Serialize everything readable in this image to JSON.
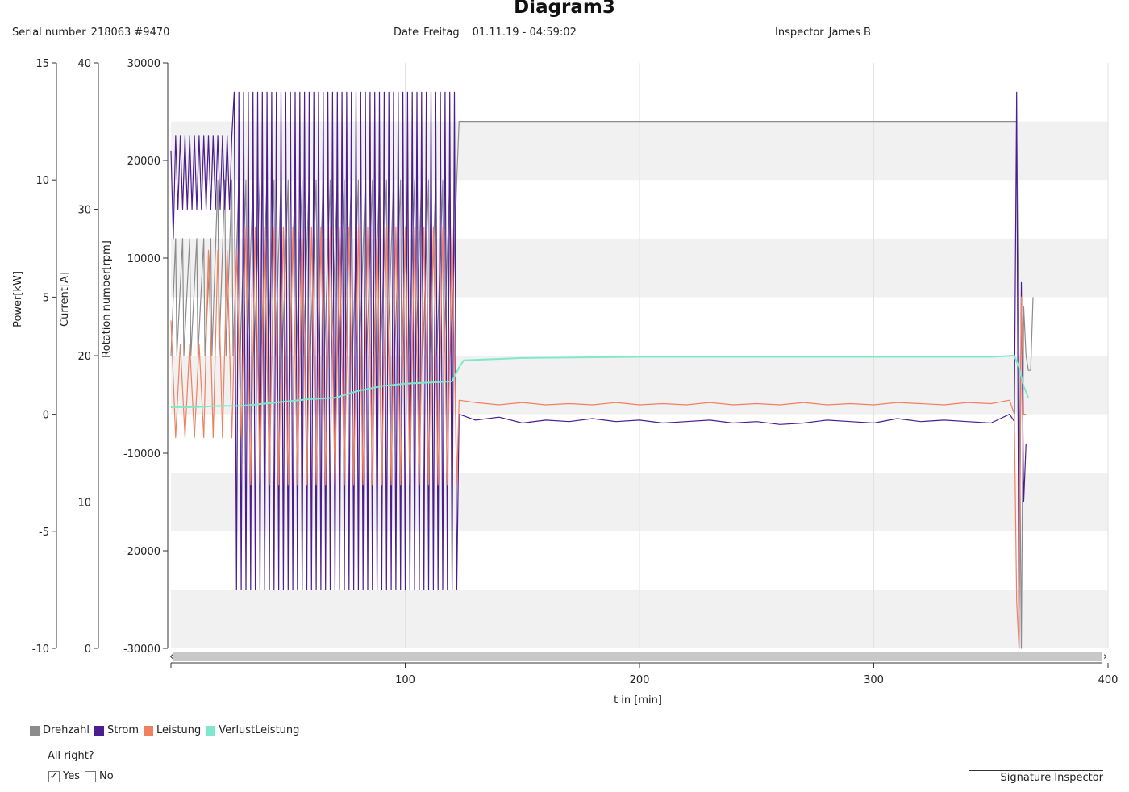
{
  "header": {
    "title": "Diagram3",
    "serial_label": "Serial number",
    "serial_value": "218063 #9470",
    "date_label": "Date",
    "date_day": "Freitag",
    "date_value": "01.11.19 - 04:59:02",
    "inspector_label": "Inspector",
    "inspector_value": "James B"
  },
  "chart_data": {
    "type": "line",
    "title": "Diagram3",
    "xlabel": "t in [min]",
    "xlim": [
      0,
      400
    ],
    "x_ticks": [
      "100",
      "200",
      "300",
      "400"
    ],
    "axes": [
      {
        "name": "power",
        "label": "Power[kW]",
        "range": [
          -10,
          15
        ],
        "ticks": [
          "15",
          "10",
          "5",
          "0",
          "-5",
          "-10"
        ]
      },
      {
        "name": "current",
        "label": "Current[A]",
        "range": [
          0,
          40
        ],
        "ticks": [
          "40",
          "30",
          "20",
          "10",
          "0"
        ]
      },
      {
        "name": "rotation",
        "label": "Rotation number[rpm]",
        "range": [
          -30000,
          30000
        ],
        "ticks": [
          "30000",
          "20000",
          "10000",
          "-10000",
          "-20000",
          "-30000"
        ]
      }
    ],
    "grid": "alternating horizontal bands, vertical gridlines at x ticks",
    "legend_position": "bottom-left",
    "series": [
      {
        "name": "Drehzahl",
        "color": "#8c8c8c",
        "axis": "rotation",
        "x": [
          0,
          2,
          2.5,
          5,
          5.5,
          8,
          8.5,
          11,
          11.5,
          14,
          14.5,
          17,
          17.5,
          20,
          20.5,
          23,
          23.5,
          26,
          26.5,
          29,
          29.5,
          32,
          32.5,
          35,
          35.5,
          38,
          38.5,
          41,
          41.5,
          44,
          44.5,
          47,
          47.5,
          50,
          50.5,
          53,
          53.5,
          56,
          56.5,
          59,
          59.5,
          62,
          62.5,
          65,
          65.5,
          68,
          68.5,
          71,
          71.5,
          74,
          74.5,
          77,
          77.5,
          80,
          80.5,
          83,
          83.5,
          86,
          86.5,
          89,
          89.5,
          92,
          92.5,
          95,
          95.5,
          98,
          98.5,
          101,
          101.5,
          104,
          104.5,
          107,
          107.5,
          110,
          110.5,
          113,
          113.5,
          116,
          116.5,
          119,
          119.5,
          122,
          123,
          360,
          361,
          362,
          363,
          364,
          365,
          366,
          367,
          368
        ],
        "values": [
          0,
          12000,
          0,
          12000,
          0,
          12000,
          0,
          12000,
          0,
          12000,
          0,
          12000,
          0,
          18000,
          0,
          18000,
          0,
          18000,
          0,
          18000,
          0,
          18000,
          0,
          18000,
          0,
          18000,
          0,
          18000,
          0,
          18000,
          0,
          18000,
          0,
          18000,
          0,
          18000,
          0,
          18000,
          0,
          18000,
          0,
          18000,
          0,
          18000,
          0,
          18000,
          0,
          18000,
          0,
          18000,
          0,
          18000,
          0,
          18000,
          0,
          18000,
          0,
          18000,
          0,
          18000,
          0,
          18000,
          0,
          18000,
          0,
          18000,
          0,
          18000,
          0,
          18000,
          0,
          18000,
          0,
          18000,
          0,
          18000,
          0,
          18000,
          0,
          18000,
          0,
          18000,
          24000,
          24000,
          24000,
          0,
          -30000,
          5000,
          0,
          -1500,
          -1500,
          6000
        ]
      },
      {
        "name": "Strom",
        "color": "#4b1d8f",
        "axis": "current",
        "x": [
          0,
          1,
          2,
          3,
          4,
          5,
          6,
          7,
          8,
          9,
          10,
          11,
          12,
          13,
          14,
          15,
          16,
          17,
          18,
          19,
          20,
          21,
          22,
          23,
          24,
          25,
          26,
          27,
          28,
          29,
          30,
          31,
          32,
          33,
          34,
          35,
          36,
          37,
          38,
          39,
          40,
          41,
          42,
          43,
          44,
          45,
          46,
          47,
          48,
          49,
          50,
          51,
          52,
          53,
          54,
          55,
          56,
          57,
          58,
          59,
          60,
          61,
          62,
          63,
          64,
          65,
          66,
          67,
          68,
          69,
          70,
          71,
          72,
          73,
          74,
          75,
          76,
          77,
          78,
          79,
          80,
          81,
          82,
          83,
          84,
          85,
          86,
          87,
          88,
          89,
          90,
          91,
          92,
          93,
          94,
          95,
          96,
          97,
          98,
          99,
          100,
          101,
          102,
          103,
          104,
          105,
          106,
          107,
          108,
          109,
          110,
          111,
          112,
          113,
          114,
          115,
          116,
          117,
          118,
          119,
          120,
          121,
          122,
          123,
          130,
          140,
          150,
          160,
          170,
          180,
          190,
          200,
          210,
          220,
          230,
          240,
          250,
          260,
          270,
          280,
          290,
          300,
          310,
          320,
          330,
          340,
          350,
          358,
          360,
          361,
          362,
          363,
          364,
          365
        ],
        "values": [
          34,
          28,
          35,
          30,
          35,
          30,
          35,
          30,
          35,
          30,
          35,
          30,
          35,
          30,
          35,
          30,
          35,
          30,
          35,
          30,
          35,
          30,
          35,
          30,
          35,
          30,
          35,
          38,
          4,
          38,
          4,
          38,
          4,
          38,
          4,
          38,
          4,
          38,
          4,
          38,
          4,
          38,
          4,
          38,
          4,
          38,
          4,
          38,
          4,
          38,
          4,
          38,
          4,
          38,
          4,
          38,
          4,
          38,
          4,
          38,
          4,
          38,
          4,
          38,
          4,
          38,
          4,
          38,
          4,
          38,
          4,
          38,
          4,
          38,
          4,
          38,
          4,
          38,
          4,
          38,
          4,
          38,
          4,
          38,
          4,
          38,
          4,
          38,
          4,
          38,
          4,
          38,
          4,
          38,
          4,
          38,
          4,
          38,
          4,
          38,
          4,
          38,
          4,
          38,
          4,
          38,
          4,
          38,
          4,
          38,
          4,
          38,
          4,
          38,
          4,
          38,
          4,
          38,
          4,
          38,
          4,
          38,
          4,
          16,
          15.6,
          15.8,
          15.4,
          15.6,
          15.5,
          15.7,
          15.5,
          15.6,
          15.4,
          15.5,
          15.6,
          15.4,
          15.5,
          15.3,
          15.4,
          15.6,
          15.5,
          15.4,
          15.7,
          15.5,
          15.6,
          15.5,
          15.4,
          16,
          15.5,
          38,
          0,
          25,
          10,
          14
        ]
      },
      {
        "name": "Leistung",
        "color": "#f08060",
        "axis": "power",
        "x": [
          0,
          2,
          4,
          6,
          8,
          10,
          12,
          14,
          16,
          18,
          20,
          22,
          24,
          26,
          28,
          30,
          32,
          34,
          36,
          38,
          40,
          42,
          44,
          46,
          48,
          50,
          52,
          54,
          56,
          58,
          60,
          62,
          64,
          66,
          68,
          70,
          72,
          74,
          76,
          78,
          80,
          82,
          84,
          86,
          88,
          90,
          92,
          94,
          96,
          98,
          100,
          102,
          104,
          106,
          108,
          110,
          112,
          114,
          116,
          118,
          120,
          122,
          123,
          130,
          140,
          150,
          160,
          170,
          180,
          190,
          200,
          210,
          220,
          230,
          240,
          250,
          260,
          270,
          280,
          290,
          300,
          310,
          320,
          330,
          340,
          350,
          358,
          360,
          361,
          362,
          363,
          364,
          365
        ],
        "values": [
          4,
          -1,
          3,
          -1,
          3,
          -1,
          3,
          -1,
          7,
          -1,
          7,
          -1,
          7,
          -1,
          7,
          -1,
          8,
          -3,
          8,
          -3,
          8,
          -3,
          8,
          -3,
          8,
          -3,
          8,
          -3,
          8,
          -3,
          8,
          -3,
          8,
          -3,
          8,
          -3,
          8,
          -3,
          8,
          -3,
          8,
          -3,
          8,
          -3,
          8,
          -3,
          8,
          -3,
          8,
          -3,
          8,
          -3,
          8,
          -3,
          8,
          -3,
          8,
          -3,
          8,
          -3,
          8,
          -3,
          0.6,
          0.5,
          0.4,
          0.5,
          0.4,
          0.45,
          0.4,
          0.5,
          0.4,
          0.45,
          0.4,
          0.5,
          0.4,
          0.45,
          0.4,
          0.5,
          0.4,
          0.45,
          0.4,
          0.5,
          0.45,
          0.4,
          0.5,
          0.45,
          0.6,
          0,
          -8,
          -10,
          5,
          0,
          0
        ]
      },
      {
        "name": "VerlustLeistung",
        "color": "#7fe8cc",
        "axis": "power",
        "x": [
          0,
          10,
          20,
          30,
          40,
          50,
          60,
          70,
          80,
          90,
          100,
          110,
          120,
          123,
          125,
          150,
          200,
          250,
          300,
          350,
          360,
          362,
          364,
          366
        ],
        "values": [
          0.3,
          0.3,
          0.35,
          0.35,
          0.45,
          0.55,
          0.65,
          0.7,
          1.0,
          1.2,
          1.3,
          1.35,
          1.4,
          2.0,
          2.3,
          2.4,
          2.45,
          2.45,
          2.45,
          2.45,
          2.5,
          2.0,
          1.2,
          0.7
        ]
      }
    ]
  },
  "footer": {
    "question": "All right?",
    "yes_label": "Yes",
    "no_label": "No",
    "yes_checked": "✓",
    "signature_label": "Signature Inspector"
  }
}
